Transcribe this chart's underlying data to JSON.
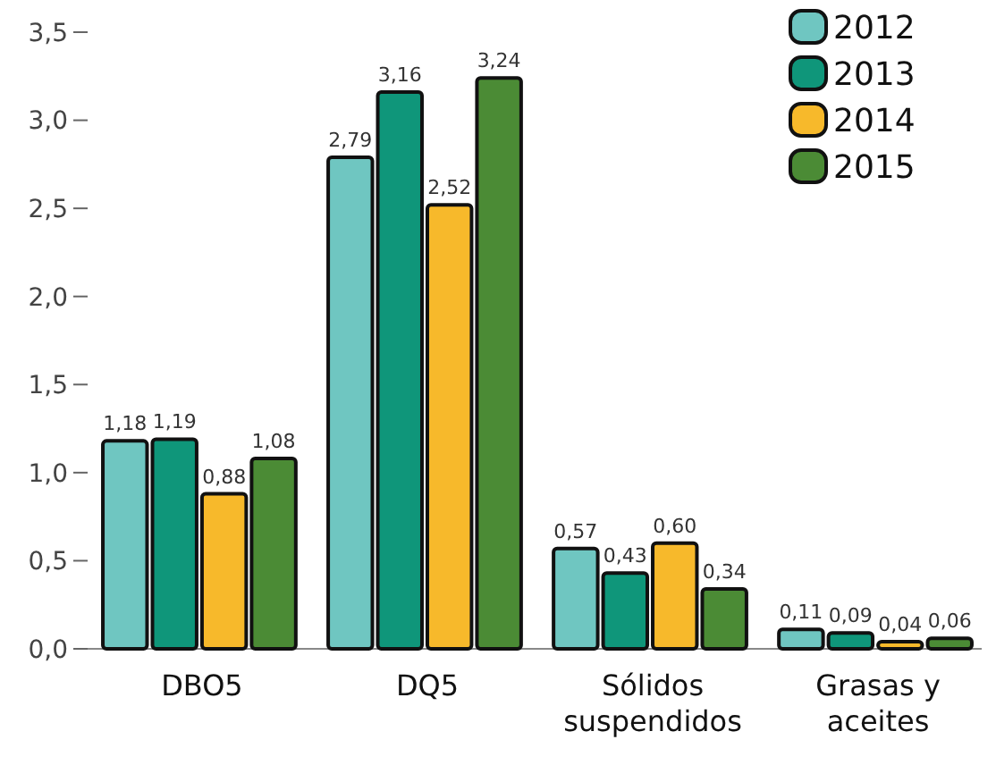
{
  "chart_data": {
    "type": "bar",
    "categories": [
      "DBO5",
      "DQ5",
      "Sólidos suspendidos",
      "Grasas y aceites"
    ],
    "series": [
      {
        "name": "2012",
        "color": "#6fc6c1",
        "values": [
          1.18,
          2.79,
          0.57,
          0.11
        ],
        "value_labels": [
          "1,18",
          "2,79",
          "0,57",
          "0,11"
        ]
      },
      {
        "name": "2013",
        "color": "#0f967a",
        "values": [
          1.19,
          3.16,
          0.43,
          0.09
        ],
        "value_labels": [
          "1,19",
          "3,16",
          "0,43",
          "0,09"
        ]
      },
      {
        "name": "2014",
        "color": "#f7b92b",
        "values": [
          0.88,
          2.52,
          0.6,
          0.04
        ],
        "value_labels": [
          "0,88",
          "2,52",
          "0,60",
          "0,04"
        ]
      },
      {
        "name": "2015",
        "color": "#4b8b35",
        "values": [
          1.08,
          3.24,
          0.34,
          0.06
        ],
        "value_labels": [
          "1,08",
          "3,24",
          "0,34",
          "0,06"
        ]
      }
    ],
    "ylim": [
      0,
      3.5
    ],
    "yticks": [
      {
        "value": 0,
        "label": "0,0"
      },
      {
        "value": 0.5,
        "label": "0,5"
      },
      {
        "value": 1,
        "label": "1,0"
      },
      {
        "value": 1.5,
        "label": "1,5"
      },
      {
        "value": 2,
        "label": "2,0"
      },
      {
        "value": 2.5,
        "label": "2,5"
      },
      {
        "value": 3,
        "label": "3,0"
      },
      {
        "value": 3.5,
        "label": "3,5"
      }
    ],
    "legend": "top right",
    "grid": false
  }
}
